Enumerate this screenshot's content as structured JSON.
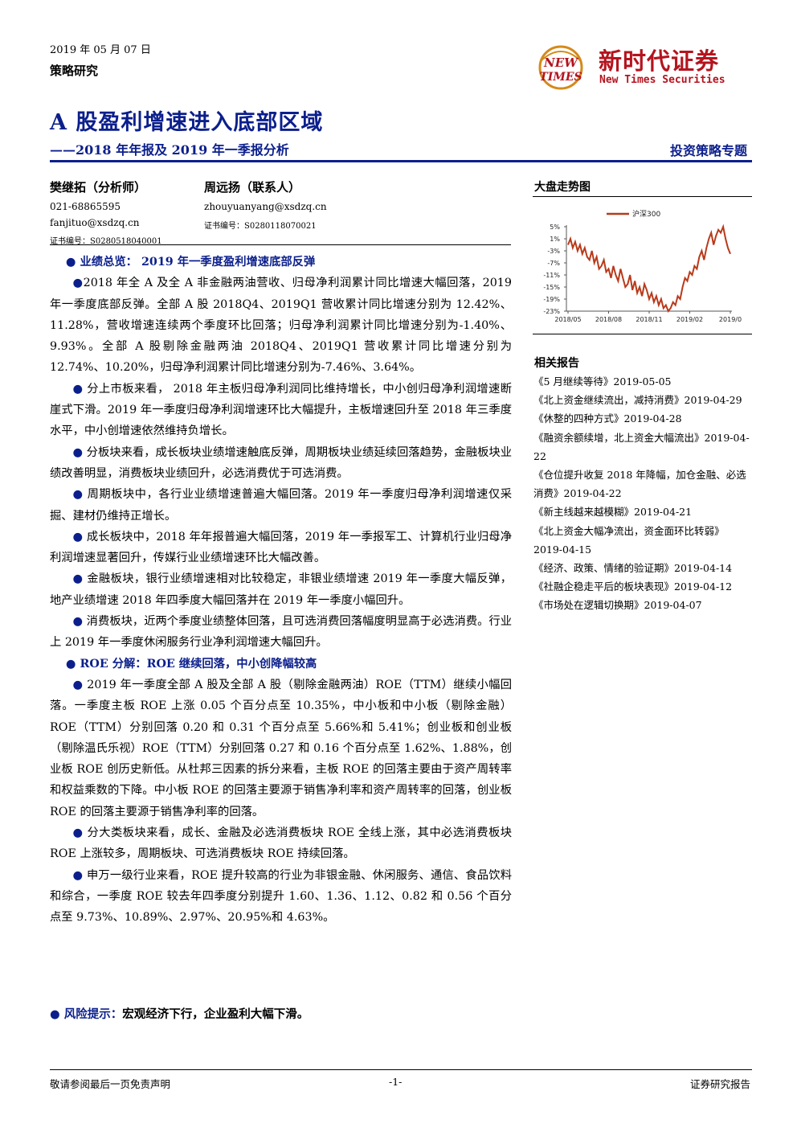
{
  "header": {
    "date": "2019 年 05 月 07 日",
    "category": "策略研究",
    "logo_cn": "新时代证券",
    "logo_en": "New Times Securities",
    "logo_badge_top": "NEW",
    "logo_badge_bottom": "TIMES"
  },
  "title": "A 股盈利增速进入底部区域",
  "subtitle": "——2018 年年报及 2019 年一季报分析",
  "report_type": "投资策略专题",
  "authors": [
    {
      "name": "樊继拓（分析师）",
      "phone": "021-68865595",
      "email": "fanjituo@xsdzq.cn",
      "cert": "证书编号：S0280518040001"
    },
    {
      "name": "周远扬（联系人）",
      "email": "zhouyuanyang@xsdzq.cn",
      "cert": "证书编号：S0280118070021"
    }
  ],
  "sections": {
    "perf_heading": "业绩总览：  2019 年一季度盈利增速底部反弹",
    "p1": "2018 年全 A 及全 A 非金融两油营收、归母净利润累计同比增速大幅回落，2019 年一季度底部反弹。全部 A 股 2018Q4、2019Q1 营收累计同比增速分别为 12.42%、11.28%，营收增速连续两个季度环比回落；归母净利润累计同比增速分别为-1.40%、9.93%。全部 A 股剔除金融两油 2018Q4、2019Q1 营收累计同比增速分别为 12.74%、10.20%，归母净利润累计同比增速分别为-7.46%、3.64%。",
    "p2": "分上市板来看，  2018 年主板归母净利润同比维持增长，中小创归母净利润增速断崖式下滑。2019 年一季度归母净利润增速环比大幅提升，主板增速回升至 2018 年三季度水平，中小创增速依然维持负增长。",
    "p3": "分板块来看，成长板块业绩增速触底反弹，周期板块业绩延续回落趋势，金融板块业绩改善明显，消费板块业绩回升，必选消费优于可选消费。",
    "p4": "周期板块中，各行业业绩增速普遍大幅回落。2019 年一季度归母净利润增速仅采掘、建材仍维持正增长。",
    "p5": "成长板块中，2018 年年报普遍大幅回落，2019 年一季报军工、计算机行业归母净利润增速显著回升，传媒行业业绩增速环比大幅改善。",
    "p6": "金融板块，银行业绩增速相对比较稳定，非银业绩增速 2019 年一季度大幅反弹，地产业绩增速 2018 年四季度大幅回落并在 2019 年一季度小幅回升。",
    "p7": "消费板块，近两个季度业绩整体回落，且可选消费回落幅度明显高于必选消费。行业上 2019 年一季度休闲服务行业净利润增速大幅回升。",
    "roe_heading": "ROE 分解：ROE 继续回落，中小创降幅较高",
    "p8": "2019 年一季度全部 A 股及全部 A 股（剔除金融两油）ROE（TTM）继续小幅回落。一季度主板 ROE 上涨 0.05 个百分点至 10.35%，中小板和中小板（剔除金融）ROE（TTM）分别回落 0.20 和 0.31 个百分点至 5.66%和 5.41%；创业板和创业板（剔除温氏乐视）ROE（TTM）分别回落 0.27 和 0.16 个百分点至 1.62%、1.88%，创业板 ROE 创历史新低。从杜邦三因素的拆分来看，主板 ROE 的回落主要由于资产周转率和权益乘数的下降。中小板 ROE 的回落主要源于销售净利率和资产周转率的回落，创业板 ROE 的回落主要源于销售净利率的回落。",
    "p9": "分大类板块来看，成长、金融及必选消费板块 ROE 全线上涨，其中必选消费板块 ROE 上涨较多，周期板块、可选消费板块 ROE 持续回落。",
    "p10": "申万一级行业来看，ROE 提升较高的行业为非银金融、休闲服务、通信、食品饮料和综合，一季度 ROE 较去年四季度分别提升 1.60、1.36、1.12、0.82 和 0.56 个百分点至 9.73%、10.89%、2.97%、20.95%和 4.63%。",
    "bullet": "●",
    "risk_label": "风险提示：",
    "risk_text": "宏观经济下行，企业盈利大幅下滑。"
  },
  "sidebar": {
    "chart_heading": "大盘走势图",
    "related_heading": "相关报告",
    "related": [
      "《5 月继续等待》2019-05-05",
      "《北上资金继续流出，减持消费》2019-04-29",
      "《休整的四种方式》2019-04-28",
      "《融资余额续增，北上资金大幅流出》2019-04-22",
      "《仓位提升收复 2018 年降幅，加仓金融、必选消费》2019-04-22",
      "《新主线越来越模糊》2019-04-21",
      "《北上资金大幅净流出，资金面环比转弱》2019-04-15",
      "《经济、政策、情绪的验证期》2019-04-14",
      "《社融企稳走平后的板块表现》2019-04-12",
      "《市场处在逻辑切换期》2019-04-07"
    ]
  },
  "chart_data": {
    "type": "line",
    "series": [
      {
        "name": "沪深300",
        "color": "#b83a1b",
        "values": [
          -1,
          1,
          -2,
          0,
          -3,
          -1,
          -4,
          -2,
          -5,
          -6,
          -3,
          -7,
          -5,
          -9,
          -8,
          -6,
          -10,
          -9,
          -12,
          -8,
          -11,
          -13,
          -9,
          -12,
          -15,
          -14,
          -11,
          -16,
          -13,
          -17,
          -15,
          -18,
          -14,
          -16,
          -19,
          -17,
          -20,
          -18,
          -21,
          -19,
          -22,
          -21,
          -23,
          -22,
          -20,
          -21,
          -18,
          -19,
          -15,
          -12,
          -13,
          -10,
          -11,
          -8,
          -9,
          -5,
          -3,
          -6,
          -2,
          1,
          3,
          -1,
          2,
          4,
          3,
          5,
          1,
          -2,
          -4
        ]
      }
    ],
    "x_ticks": [
      "2018/05",
      "2018/08",
      "2018/11",
      "2019/02",
      "2019/0"
    ],
    "y_ticks": [
      "5%",
      "1%",
      "-3%",
      "-7%",
      "-11%",
      "-15%",
      "-19%",
      "-23%"
    ],
    "ylim": [
      -23,
      5
    ],
    "legend": "top-right"
  },
  "footer": {
    "left": "敬请参阅最后一页免责声明",
    "center": "-1-",
    "right": "证券研究报告"
  }
}
